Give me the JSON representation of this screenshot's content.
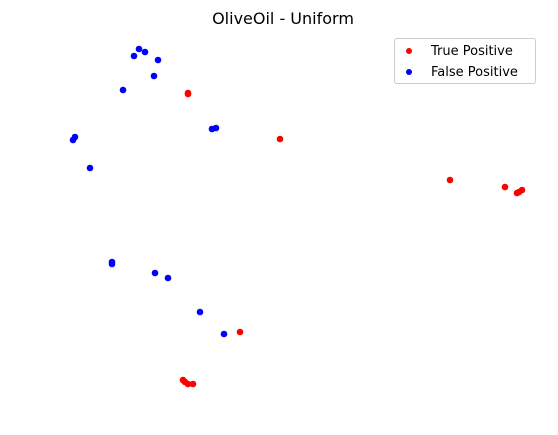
{
  "chart_data": {
    "type": "scatter",
    "title": "OliveOil - Uniform",
    "xlabel": "",
    "ylabel": "",
    "grid": false,
    "axes_visible": false,
    "legend_position": "top-right",
    "series": [
      {
        "name": "True Positive",
        "color": "#ff0000",
        "points": [
          [
            188,
            93
          ],
          [
            188,
            94
          ],
          [
            280,
            139
          ],
          [
            450,
            180
          ],
          [
            505,
            187
          ],
          [
            517,
            193
          ],
          [
            519,
            192
          ],
          [
            522,
            190
          ],
          [
            240,
            332
          ],
          [
            183,
            380
          ],
          [
            185,
            382
          ],
          [
            188,
            384
          ],
          [
            193,
            384
          ]
        ]
      },
      {
        "name": "False Positive",
        "color": "#0000ff",
        "points": [
          [
            139,
            49
          ],
          [
            145,
            52
          ],
          [
            134,
            56
          ],
          [
            158,
            60
          ],
          [
            154,
            76
          ],
          [
            123,
            90
          ],
          [
            212,
            129
          ],
          [
            216,
            128
          ],
          [
            75,
            137
          ],
          [
            73,
            140
          ],
          [
            90,
            168
          ],
          [
            112,
            262
          ],
          [
            112,
            264
          ],
          [
            155,
            273
          ],
          [
            168,
            278
          ],
          [
            200,
            312
          ],
          [
            224,
            334
          ]
        ]
      }
    ]
  }
}
